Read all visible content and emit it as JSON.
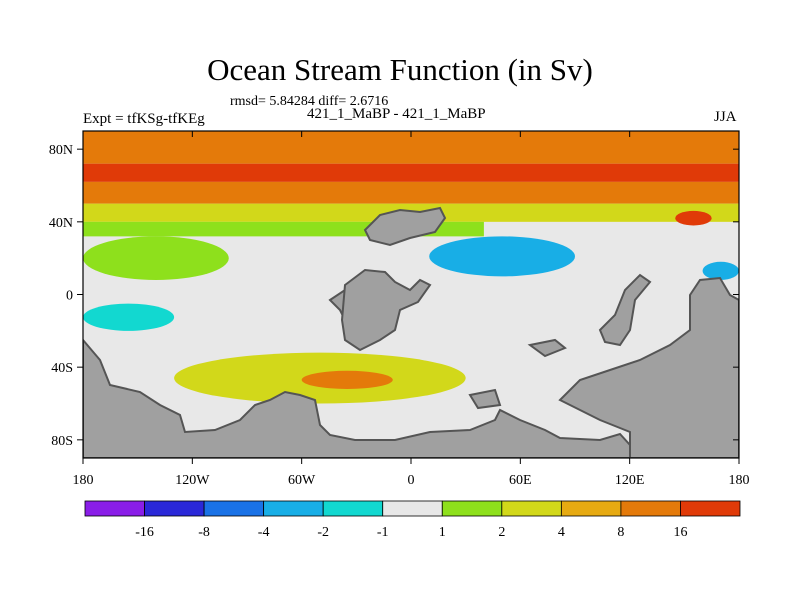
{
  "title": "Ocean Stream Function (in Sv)",
  "stats": "rmsd= 5.84284 diff= 2.6716",
  "expt": "Expt = tfKSg-tfKEg",
  "subtitle": "421_1_MaBP - 421_1_MaBP",
  "season": "JJA",
  "chart_data": {
    "type": "heatmap",
    "title": "Ocean Stream Function (in Sv)",
    "xlabel": "",
    "ylabel": "",
    "xlim": [
      -180,
      180
    ],
    "ylim": [
      -90,
      90
    ],
    "x_ticks": [
      {
        "value": -180,
        "label": "180"
      },
      {
        "value": -120,
        "label": "120W"
      },
      {
        "value": -60,
        "label": "60W"
      },
      {
        "value": 0,
        "label": "0"
      },
      {
        "value": 60,
        "label": "60E"
      },
      {
        "value": 120,
        "label": "120E"
      },
      {
        "value": 180,
        "label": "180"
      }
    ],
    "y_ticks": [
      {
        "value": 80,
        "label": "80N"
      },
      {
        "value": 40,
        "label": "40N"
      },
      {
        "value": 0,
        "label": "0"
      },
      {
        "value": -40,
        "label": "40S"
      },
      {
        "value": -80,
        "label": "80S"
      }
    ],
    "colorbar": {
      "colors": [
        "#8a1ee8",
        "#2a28d8",
        "#1a72e6",
        "#18aee6",
        "#12d8d0",
        "#e8e8e8",
        "#8ee01c",
        "#d2d81a",
        "#e6aa12",
        "#e47a0a",
        "#e03a08"
      ],
      "labels": [
        "-16",
        "-8",
        "-4",
        "-2",
        "-1",
        "1",
        "2",
        "4",
        "8",
        "16"
      ]
    },
    "bands": [
      {
        "name": "arctic-band",
        "level": 8,
        "lat": [
          72,
          90
        ],
        "lon": [
          -180,
          180
        ]
      },
      {
        "name": "north-jet-band",
        "level": 16,
        "lat": [
          62,
          72
        ],
        "lon": [
          -180,
          180
        ]
      },
      {
        "name": "north-mid-band",
        "level": 8,
        "lat": [
          50,
          62
        ],
        "lon": [
          -180,
          180
        ]
      },
      {
        "name": "north-south-band",
        "level": 4,
        "lat": [
          40,
          50
        ],
        "lon": [
          -180,
          180
        ]
      },
      {
        "name": "north-edge-band",
        "level": 2,
        "lat": [
          32,
          40
        ],
        "lon": [
          -180,
          40
        ]
      }
    ],
    "features": [
      {
        "name": "pacific-tongue",
        "level": 2,
        "lon_range": [
          -180,
          -100
        ],
        "lat_range": [
          8,
          32
        ]
      },
      {
        "name": "tropical-pacific-negative",
        "level": -2,
        "lon_range": [
          -180,
          -130
        ],
        "lat_range": [
          -20,
          -5
        ]
      },
      {
        "name": "indian-negative-cell",
        "level": -4,
        "lon_range": [
          10,
          90
        ],
        "lat_range": [
          10,
          32
        ]
      },
      {
        "name": "west-pacific-negative",
        "level": -4,
        "lon_range": [
          160,
          180
        ],
        "lat_range": [
          8,
          18
        ]
      },
      {
        "name": "southern-positive-band",
        "level": 4,
        "lon_range": [
          -130,
          30
        ],
        "lat_range": [
          -60,
          -32
        ]
      },
      {
        "name": "southern-peak",
        "level": 8,
        "lon_range": [
          -60,
          -10
        ],
        "lat_range": [
          -52,
          -42
        ]
      },
      {
        "name": "subpolar-max",
        "level": 16,
        "lon_range": [
          145,
          165
        ],
        "lat_range": [
          38,
          46
        ]
      }
    ]
  }
}
